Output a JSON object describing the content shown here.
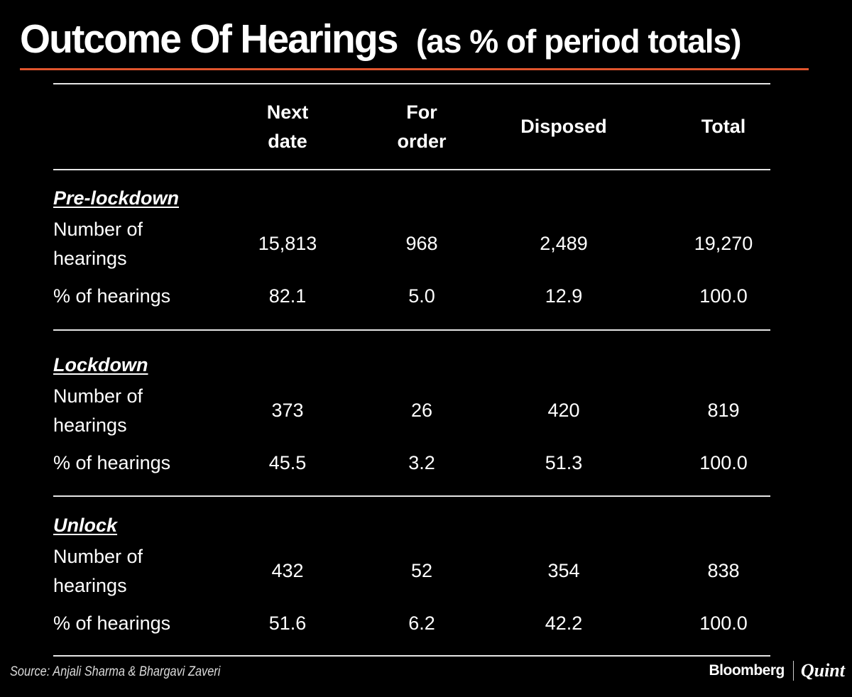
{
  "title": "Outcome Of Hearings",
  "subtitle": "(as % of period totals)",
  "chart_data": {
    "type": "table",
    "columns": [
      "Next date",
      "For order",
      "Disposed",
      "Total"
    ],
    "column_header_lines": [
      [
        "Next",
        "date"
      ],
      [
        "For",
        "order"
      ],
      [
        "Disposed"
      ],
      [
        "Total"
      ]
    ],
    "sections": [
      {
        "name": "Pre-lockdown",
        "rows": [
          {
            "label_lines": [
              "Number of",
              "hearings"
            ],
            "values": [
              "15,813",
              "968",
              "2,489",
              "19,270"
            ]
          },
          {
            "label_lines": [
              "% of hearings"
            ],
            "values": [
              "82.1",
              "5.0",
              "12.9",
              "100.0"
            ]
          }
        ]
      },
      {
        "name": "Lockdown",
        "rows": [
          {
            "label_lines": [
              "Number of",
              "hearings"
            ],
            "values": [
              "373",
              "26",
              "420",
              "819"
            ]
          },
          {
            "label_lines": [
              "% of hearings"
            ],
            "values": [
              "45.5",
              "3.2",
              "51.3",
              "100.0"
            ]
          }
        ]
      },
      {
        "name": "Unlock",
        "rows": [
          {
            "label_lines": [
              "Number of",
              "hearings"
            ],
            "values": [
              "432",
              "52",
              "354",
              "838"
            ]
          },
          {
            "label_lines": [
              "% of hearings"
            ],
            "values": [
              "51.6",
              "6.2",
              "42.2",
              "100.0"
            ]
          }
        ]
      }
    ]
  },
  "source": "Source: Anjali Sharma & Bhargavi Zaveri",
  "logo": {
    "left": "Bloomberg",
    "right": "Quint"
  },
  "colors": {
    "background": "#000000",
    "text": "#ffffff",
    "accent_rule": "#e0552d",
    "table_rule": "#e6e6e6"
  }
}
